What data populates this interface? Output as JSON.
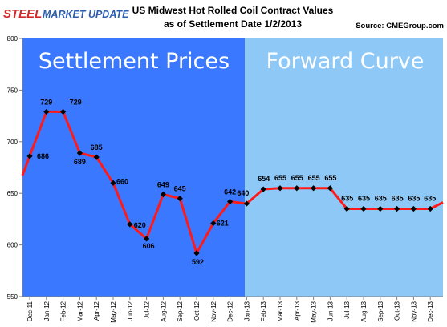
{
  "header": {
    "logo_steel": "STEEL",
    "logo_rest": "MARKET UPDATE",
    "title_line1": "US Midwest Hot Rolled Coil Contract Values",
    "title_line2": "as of Settlement Date 1/2/2013",
    "source": "Source: CMEGroup.com"
  },
  "colors": {
    "settlement_bg": "#3a78ff",
    "forward_bg": "#8ec8f6",
    "line": "#ff1a1a",
    "marker": "#000000",
    "logo_red": "#d22b2b",
    "logo_blue": "#2d5fb0"
  },
  "chart_data": {
    "type": "line",
    "title": "US Midwest Hot Rolled Coil Contract Values as of Settlement Date 1/2/2013",
    "categories": [
      "Dec-11",
      "Jan-12",
      "Feb-12",
      "Mar-12",
      "Apr-12",
      "May-12",
      "Jun-12",
      "Jul-12",
      "Aug-12",
      "Sep-12",
      "Oct-12",
      "Nov-12",
      "Dec-12",
      "Jan-13",
      "Feb-13",
      "Mar-13",
      "Apr-13",
      "May-13",
      "Jun-13",
      "Jul-13",
      "Aug-13",
      "Sep-13",
      "Oct-13",
      "Nov-13",
      "Dec-13"
    ],
    "values": [
      686,
      729,
      729,
      689,
      685,
      660,
      620,
      606,
      649,
      645,
      592,
      621,
      642,
      640,
      654,
      655,
      655,
      655,
      655,
      635,
      635,
      635,
      635,
      635,
      635
    ],
    "ylim": [
      550,
      800
    ],
    "yticks": [
      550,
      600,
      650,
      700,
      750,
      800
    ],
    "regions": [
      {
        "label": "Settlement Prices",
        "from": "Dec-11",
        "to": "Dec-12"
      },
      {
        "label": "Forward Curve",
        "from": "Jan-13",
        "to": "Dec-13"
      }
    ],
    "grid": false,
    "legend": "none"
  }
}
